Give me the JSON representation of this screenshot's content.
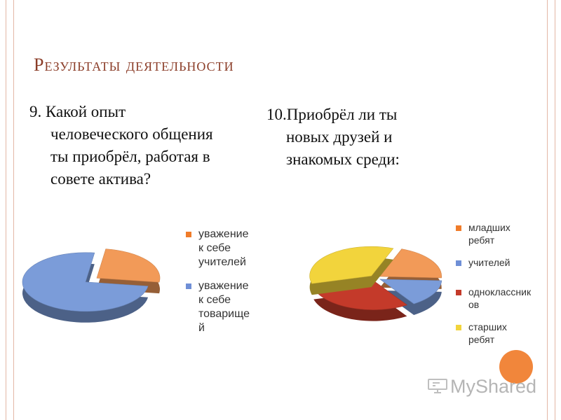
{
  "slide": {
    "title": "Результаты деятельности",
    "question1": [
      "9. Какой опыт",
      "человеческого общения",
      "ты приобрёл, работая в",
      "совете актива?"
    ],
    "question2": [
      "10.Приобрёл ли ты",
      "новых друзей и",
      "знакомых среди:"
    ]
  },
  "watermark": {
    "text": "MyShared",
    "icon": "presentation-board-icon"
  },
  "colors": {
    "accent": "#f07c2a",
    "title": "#8b3d28",
    "frame": "#e4b7a6"
  },
  "chart_data": [
    {
      "type": "pie",
      "variant": "3d-exploded",
      "series": [
        {
          "name": "уважение к себе учителей",
          "value": 25,
          "color": "#f29a58"
        },
        {
          "name": "уважение к себе товарищей",
          "value": 75,
          "color": "#7b9cd9"
        }
      ],
      "legend": [
        "уважение",
        "к себе",
        "учителей",
        "уважение",
        "к себе",
        "товарище",
        "й"
      ],
      "legend_position": "right"
    },
    {
      "type": "pie",
      "variant": "3d-exploded",
      "series": [
        {
          "name": "младших ребят",
          "value": 20,
          "color": "#f29a58"
        },
        {
          "name": "учителей",
          "value": 15,
          "color": "#7b9cd9"
        },
        {
          "name": "одноклассников",
          "value": 30,
          "color": "#c43a2a"
        },
        {
          "name": "старших ребят",
          "value": 35,
          "color": "#f2d43c"
        }
      ],
      "legend": [
        "младших",
        "ребят",
        "учителей",
        "одноклассник",
        "ов",
        "старших",
        "ребят"
      ],
      "legend_position": "right"
    }
  ]
}
